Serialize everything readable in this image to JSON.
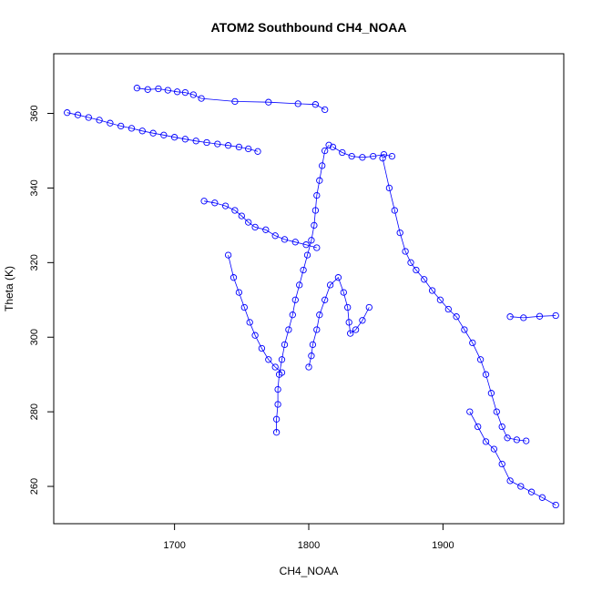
{
  "chart_data": {
    "type": "scatter",
    "title": "ATOM2 Southbound CH4_NOAA",
    "xlabel": "CH4_NOAA",
    "ylabel": "Theta (K)",
    "xlim": [
      1610,
      1990
    ],
    "ylim": [
      250,
      376
    ],
    "x_ticks": [
      1700,
      1800,
      1900
    ],
    "y_ticks": [
      260,
      280,
      300,
      320,
      340,
      360
    ],
    "grid": false,
    "legend": "none",
    "marker": "open-circle",
    "connected": true,
    "color": "#0000ff",
    "series": [
      {
        "segment": "upper-left-stratospheric-branch",
        "points": [
          [
            1620,
            360.2
          ],
          [
            1628,
            359.6
          ],
          [
            1636,
            358.9
          ],
          [
            1644,
            358.2
          ],
          [
            1652,
            357.4
          ],
          [
            1660,
            356.6
          ],
          [
            1668,
            356.0
          ],
          [
            1676,
            355.3
          ],
          [
            1684,
            354.7
          ],
          [
            1692,
            354.2
          ],
          [
            1700,
            353.6
          ],
          [
            1708,
            353.1
          ],
          [
            1716,
            352.6
          ],
          [
            1724,
            352.2
          ],
          [
            1732,
            351.8
          ],
          [
            1740,
            351.4
          ],
          [
            1748,
            351.0
          ],
          [
            1755,
            350.5
          ],
          [
            1762,
            349.8
          ]
        ]
      },
      {
        "segment": "upper-left-top-cluster",
        "points": [
          [
            1672,
            366.8
          ],
          [
            1680,
            366.4
          ],
          [
            1688,
            366.6
          ],
          [
            1695,
            366.2
          ],
          [
            1702,
            365.8
          ],
          [
            1708,
            365.6
          ],
          [
            1714,
            365.0
          ],
          [
            1720,
            364.0
          ],
          [
            1745,
            363.2
          ],
          [
            1770,
            363.0
          ],
          [
            1792,
            362.6
          ],
          [
            1805,
            362.4
          ],
          [
            1812,
            361.0
          ]
        ]
      },
      {
        "segment": "mid-left-cluster",
        "points": [
          [
            1722,
            336.5
          ],
          [
            1730,
            336.0
          ],
          [
            1738,
            335.2
          ],
          [
            1745,
            334.0
          ],
          [
            1750,
            332.5
          ],
          [
            1755,
            330.8
          ],
          [
            1760,
            329.5
          ],
          [
            1768,
            328.8
          ],
          [
            1775,
            327.2
          ],
          [
            1782,
            326.2
          ],
          [
            1790,
            325.5
          ],
          [
            1798,
            324.8
          ],
          [
            1806,
            324.0
          ]
        ]
      },
      {
        "segment": "left-descending-arc",
        "points": [
          [
            1740,
            322.0
          ],
          [
            1744,
            316.0
          ],
          [
            1748,
            312.0
          ],
          [
            1752,
            308.0
          ],
          [
            1756,
            304.0
          ],
          [
            1760,
            300.5
          ],
          [
            1765,
            297.0
          ],
          [
            1770,
            294.0
          ],
          [
            1775,
            292.0
          ],
          [
            1780,
            290.5
          ]
        ]
      },
      {
        "segment": "central-vertical-column",
        "points": [
          [
            1776,
            274.5
          ],
          [
            1776,
            278.0
          ],
          [
            1777,
            282.0
          ],
          [
            1777,
            286.0
          ],
          [
            1778,
            290.0
          ],
          [
            1780,
            294.0
          ],
          [
            1782,
            298.0
          ],
          [
            1785,
            302.0
          ],
          [
            1788,
            306.0
          ],
          [
            1790,
            310.0
          ],
          [
            1793,
            314.0
          ],
          [
            1796,
            318.0
          ],
          [
            1799,
            322.0
          ],
          [
            1802,
            326.0
          ],
          [
            1804,
            330.0
          ],
          [
            1805,
            334.0
          ],
          [
            1806,
            338.0
          ],
          [
            1808,
            342.0
          ],
          [
            1810,
            346.0
          ],
          [
            1812,
            350.0
          ],
          [
            1815,
            351.5
          ]
        ]
      },
      {
        "segment": "central-secondary-plume",
        "points": [
          [
            1800,
            292.0
          ],
          [
            1802,
            295.0
          ],
          [
            1803,
            298.0
          ],
          [
            1806,
            302.0
          ],
          [
            1808,
            306.0
          ],
          [
            1812,
            310.0
          ],
          [
            1816,
            314.0
          ],
          [
            1822,
            316.0
          ],
          [
            1826,
            312.0
          ],
          [
            1829,
            308.0
          ],
          [
            1830,
            304.0
          ],
          [
            1831,
            301.0
          ],
          [
            1835,
            302.0
          ],
          [
            1840,
            304.5
          ],
          [
            1845,
            308.0
          ]
        ]
      },
      {
        "segment": "upper-right-cap",
        "points": [
          [
            1818,
            351.0
          ],
          [
            1825,
            349.5
          ],
          [
            1832,
            348.5
          ],
          [
            1840,
            348.2
          ],
          [
            1848,
            348.5
          ],
          [
            1856,
            349.0
          ],
          [
            1862,
            348.5
          ]
        ]
      },
      {
        "segment": "right-descending-band",
        "points": [
          [
            1855,
            348.0
          ],
          [
            1860,
            340.0
          ],
          [
            1864,
            334.0
          ],
          [
            1868,
            328.0
          ],
          [
            1872,
            323.0
          ],
          [
            1876,
            320.0
          ],
          [
            1880,
            318.0
          ],
          [
            1886,
            315.5
          ],
          [
            1892,
            312.5
          ],
          [
            1898,
            310.0
          ],
          [
            1904,
            307.5
          ],
          [
            1910,
            305.5
          ],
          [
            1916,
            302.0
          ],
          [
            1922,
            298.5
          ],
          [
            1928,
            294.0
          ],
          [
            1932,
            290.0
          ],
          [
            1936,
            285.0
          ],
          [
            1940,
            280.0
          ],
          [
            1944,
            276.0
          ],
          [
            1948,
            273.0
          ],
          [
            1955,
            272.5
          ],
          [
            1962,
            272.2
          ]
        ]
      },
      {
        "segment": "right-lower-tail",
        "points": [
          [
            1920,
            280.0
          ],
          [
            1926,
            276.0
          ],
          [
            1932,
            272.0
          ],
          [
            1938,
            270.0
          ],
          [
            1944,
            266.0
          ],
          [
            1950,
            261.5
          ],
          [
            1958,
            260.0
          ],
          [
            1966,
            258.5
          ],
          [
            1974,
            257.0
          ],
          [
            1984,
            255.0
          ]
        ]
      },
      {
        "segment": "right-outliers",
        "points": [
          [
            1950,
            305.5
          ],
          [
            1960,
            305.2
          ],
          [
            1972,
            305.6
          ],
          [
            1984,
            305.8
          ]
        ]
      }
    ]
  }
}
